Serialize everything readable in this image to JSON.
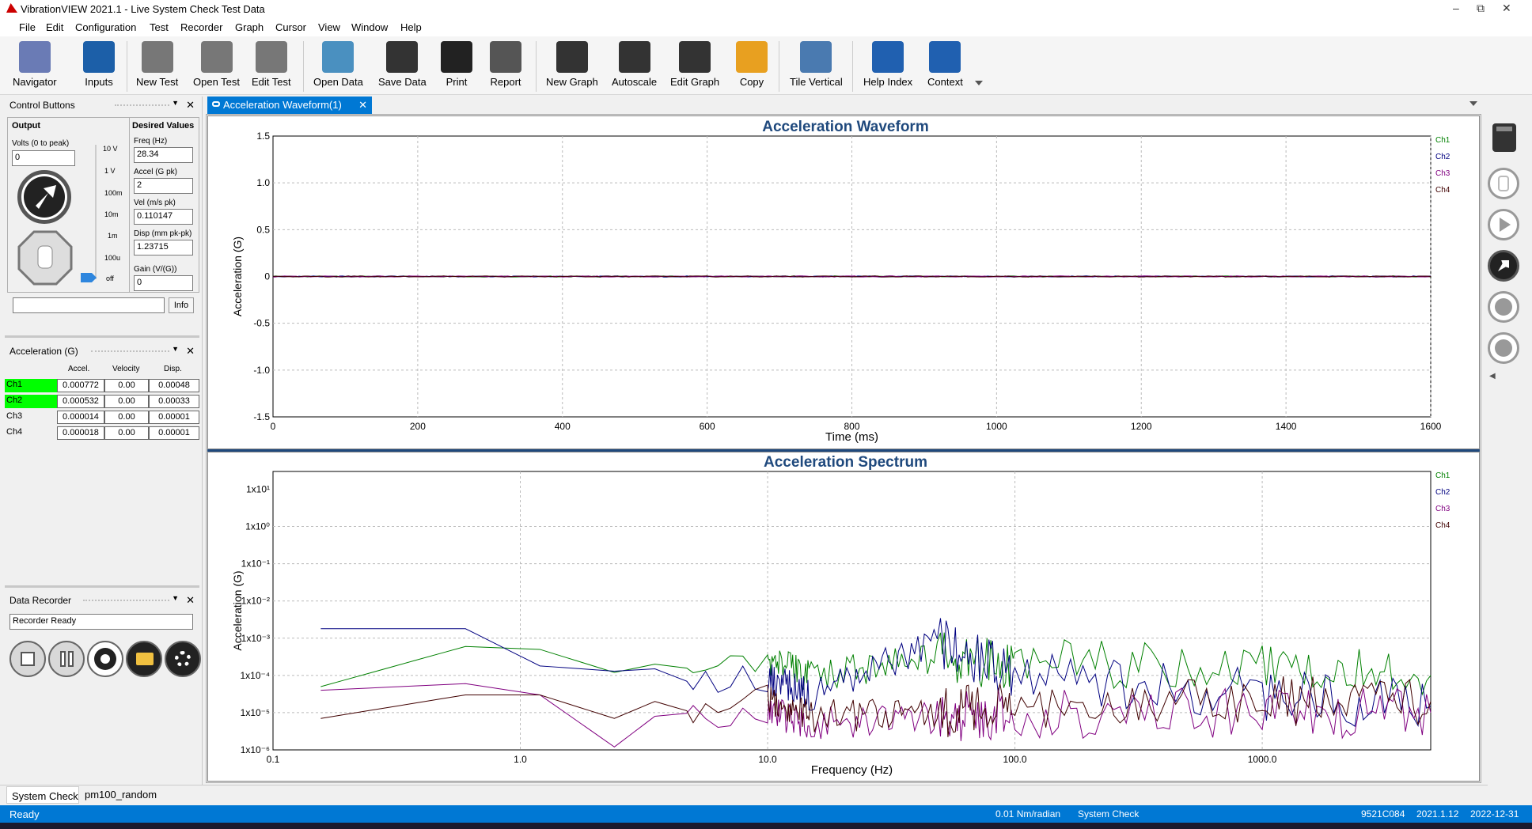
{
  "window": {
    "title": "VibrationVIEW 2021.1 - Live System Check Test Data",
    "min": "–",
    "restore": "⧉",
    "close": "✕"
  },
  "menu": [
    "File",
    "Edit",
    "Configuration",
    "Test",
    "Recorder",
    "Graph",
    "Cursor",
    "View",
    "Window",
    "Help"
  ],
  "toolbar": [
    {
      "label": "Navigator",
      "icon": "navigator-icon",
      "x": 16
    },
    {
      "label": "Inputs",
      "icon": "inputs-icon",
      "x": 105
    },
    {
      "label": "New Test",
      "icon": "new-test-icon",
      "x": 172
    },
    {
      "label": "Open Test",
      "icon": "open-test-icon",
      "x": 244
    },
    {
      "label": "Edit Test",
      "icon": "edit-test-icon",
      "x": 318
    },
    {
      "label": "Open Data",
      "icon": "open-data-icon",
      "x": 396
    },
    {
      "label": "Save Data",
      "icon": "save-data-icon",
      "x": 478
    },
    {
      "label": "Print",
      "icon": "print-icon",
      "x": 557
    },
    {
      "label": "Report",
      "icon": "report-icon",
      "x": 619
    },
    {
      "label": "New Graph",
      "icon": "new-graph-icon",
      "x": 690
    },
    {
      "label": "Autoscale",
      "icon": "autoscale-icon",
      "x": 773
    },
    {
      "label": "Edit Graph",
      "icon": "edit-graph-icon",
      "x": 847
    },
    {
      "label": "Copy",
      "icon": "copy-icon",
      "x": 930
    },
    {
      "label": "Tile Vertical",
      "icon": "tile-vertical-icon",
      "x": 998
    },
    {
      "label": "Help Index",
      "icon": "help-index-icon",
      "x": 1091
    },
    {
      "label": "Context",
      "icon": "context-icon",
      "x": 1172
    }
  ],
  "control": {
    "header": "Control Buttons",
    "output_label": "Output",
    "volts_label": "Volts (0 to peak)",
    "volts_value": "0",
    "scale": [
      "10 V",
      "1 V",
      "100m",
      "10m",
      "1m",
      "100u",
      "off"
    ],
    "desired_label": "Desired Values",
    "fields": [
      {
        "label": "Freq (Hz)",
        "value": "28.34"
      },
      {
        "label": "Accel (G pk)",
        "value": "2"
      },
      {
        "label": "Vel (m/s pk)",
        "value": "0.110147"
      },
      {
        "label": "Disp (mm pk-pk)",
        "value": "1.23715"
      },
      {
        "label": "Gain (V/(G))",
        "value": "0"
      }
    ],
    "info_label": "Info"
  },
  "accel": {
    "header": "Acceleration (G)",
    "cols": [
      "Accel.",
      "Velocity",
      "Disp."
    ],
    "rows": [
      {
        "ch": "Ch1",
        "accel": "0.000772",
        "vel": "0.00",
        "disp": "0.00048",
        "active": true
      },
      {
        "ch": "Ch2",
        "accel": "0.000532",
        "vel": "0.00",
        "disp": "0.00033",
        "active": true
      },
      {
        "ch": "Ch3",
        "accel": "0.000014",
        "vel": "0.00",
        "disp": "0.00001",
        "active": false
      },
      {
        "ch": "Ch4",
        "accel": "0.000018",
        "vel": "0.00",
        "disp": "0.00001",
        "active": false
      }
    ]
  },
  "recorder": {
    "header": "Data Recorder",
    "status": "Recorder Ready"
  },
  "doc_tab": "Acceleration Waveform(1)",
  "colors": {
    "ch1": "#008000",
    "ch2": "#000080",
    "ch3": "#800080",
    "ch4": "#400000",
    "title": "#1f497d",
    "status": "#0078d4"
  },
  "chart_data": [
    {
      "type": "line",
      "title": "Acceleration Waveform",
      "xlabel": "Time (ms)",
      "ylabel": "Acceleration (G)",
      "xlim": [
        0,
        1600
      ],
      "ylim": [
        -1.5,
        1.5
      ],
      "xticks": [
        "0",
        "200",
        "400",
        "600",
        "800",
        "1000",
        "1200",
        "1400",
        "1600"
      ],
      "yticks": [
        "1.5",
        "1.0",
        "0.5",
        "0",
        "-0.5",
        "-1.0",
        "-1.5"
      ],
      "grid": true,
      "legend": "right",
      "series": [
        {
          "name": "Ch1",
          "x": [
            0,
            1600
          ],
          "values": [
            0,
            0
          ]
        },
        {
          "name": "Ch2",
          "x": [
            0,
            1600
          ],
          "values": [
            0,
            0
          ]
        },
        {
          "name": "Ch3",
          "x": [
            0,
            1600
          ],
          "values": [
            0,
            0
          ]
        },
        {
          "name": "Ch4",
          "x": [
            0,
            1600
          ],
          "values": [
            0,
            0
          ]
        }
      ]
    },
    {
      "type": "line",
      "title": "Acceleration Spectrum",
      "xlabel": "Frequency (Hz)",
      "ylabel": "Acceleration (G)",
      "xscale": "log",
      "yscale": "log",
      "xlim": [
        0.1,
        4800
      ],
      "ylim": [
        1e-06,
        30
      ],
      "xticks": [
        "0.1",
        "1.0",
        "10.0",
        "100.0",
        "1000.0"
      ],
      "yticks": [
        "1x10¹",
        "1x10⁰",
        "1x10⁻¹",
        "1x10⁻²",
        "1x10⁻³",
        "1x10⁻⁴",
        "1x10⁻⁵",
        "1x10⁻⁶"
      ],
      "grid": true,
      "legend": "right",
      "series": [
        {
          "name": "Ch1",
          "x": [
            0.156,
            0.6,
            1.2,
            2.4,
            3.5,
            5,
            10,
            15,
            50,
            100,
            1000,
            4800
          ],
          "values": [
            5e-05,
            0.0006,
            0.0005,
            0.00012,
            0.0002,
            0.00015,
            0.00025,
            0.0001,
            0.0003,
            0.0002,
            0.00015,
            0.0001
          ]
        },
        {
          "name": "Ch2",
          "x": [
            0.156,
            0.6,
            1.2,
            2.4,
            3.5,
            5,
            10,
            15,
            50,
            100,
            1000,
            4800
          ],
          "values": [
            0.0018,
            0.0018,
            0.00018,
            0.00013,
            0.00015,
            6e-05,
            8e-05,
            3e-05,
            0.0008,
            0.0001,
            3e-05,
            1.5e-05
          ]
        },
        {
          "name": "Ch3",
          "x": [
            0.156,
            0.6,
            1.2,
            2.4,
            3.5,
            5,
            10,
            15,
            50,
            100,
            1000,
            4800
          ],
          "values": [
            4e-05,
            6e-05,
            3e-05,
            1.2e-06,
            8e-06,
            1e-05,
            1e-05,
            5e-06,
            8e-06,
            1e-05,
            1e-05,
            1e-05
          ]
        },
        {
          "name": "Ch4",
          "x": [
            0.156,
            0.6,
            1.2,
            2.4,
            3.5,
            5,
            10,
            15,
            50,
            100,
            1000,
            4800
          ],
          "values": [
            7e-06,
            3e-05,
            3e-05,
            7e-06,
            2e-05,
            1e-05,
            2e-05,
            8e-06,
            1e-05,
            1.5e-05,
            2e-05,
            2e-05
          ]
        }
      ]
    }
  ],
  "bottom_tabs": [
    "System Check",
    "pm100_random"
  ],
  "status": {
    "left": "Ready",
    "units": "0.01 Nm/radian",
    "test": "System Check",
    "serial": "9521C084",
    "version": "2021.1.12",
    "date": "2022-12-31"
  }
}
